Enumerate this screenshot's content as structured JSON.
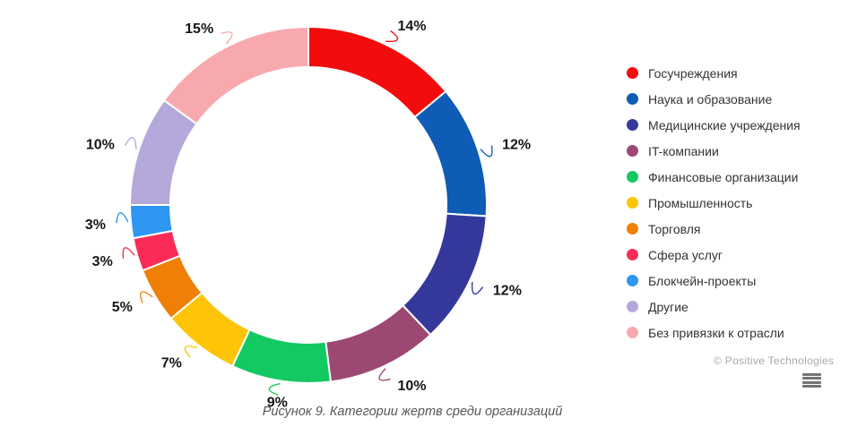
{
  "chart_data": {
    "type": "pie",
    "subtype": "donut",
    "title": "",
    "start_angle_deg": 0,
    "direction": "clockwise",
    "value_suffix": "%",
    "legend_position": "right",
    "series": [
      {
        "name": "Госучреждения",
        "value": 14,
        "color": "#f20c0c"
      },
      {
        "name": "Наука и образование",
        "value": 12,
        "color": "#0e5cb5"
      },
      {
        "name": "Медицинские учреждения",
        "value": 12,
        "color": "#35389b"
      },
      {
        "name": "IT-компании",
        "value": 10,
        "color": "#9c4872"
      },
      {
        "name": "Финансовые организации",
        "value": 9,
        "color": "#14c862"
      },
      {
        "name": "Промышленность",
        "value": 7,
        "color": "#fdc408"
      },
      {
        "name": "Торговля",
        "value": 5,
        "color": "#ef7f07"
      },
      {
        "name": "Сфера услуг",
        "value": 3,
        "color": "#fb2b57"
      },
      {
        "name": "Блокчейн-проекты",
        "value": 3,
        "color": "#2e97f2"
      },
      {
        "name": "Другие",
        "value": 10,
        "color": "#b4a9da"
      },
      {
        "name": "Без привязки к отрасли",
        "value": 15,
        "color": "#f8a9ae"
      }
    ]
  },
  "caption": "Рисунок 9. Категории жертв среди организаций",
  "footer": {
    "copyright": "© Positive Technologies"
  }
}
